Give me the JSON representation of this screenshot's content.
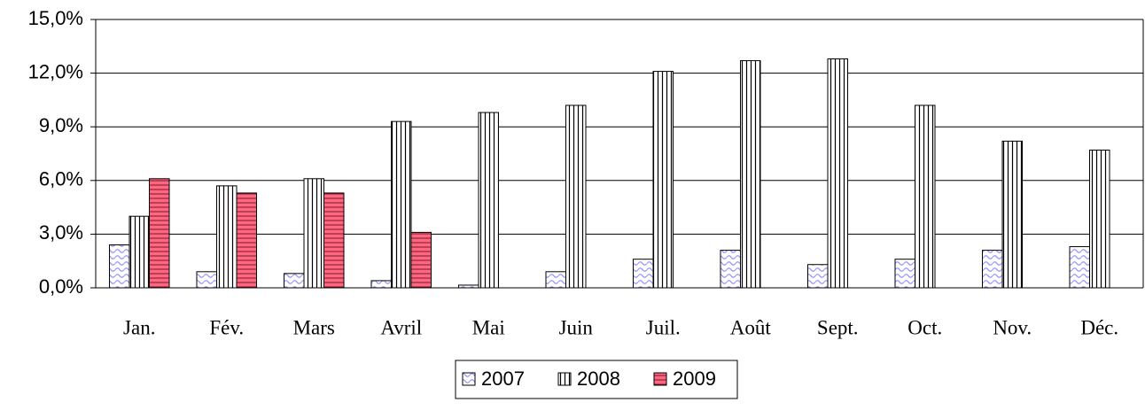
{
  "chart_data": {
    "type": "bar",
    "categories": [
      "Jan.",
      "Fév.",
      "Mars",
      "Avril",
      "Mai",
      "Juin",
      "Juil.",
      "Août",
      "Sept.",
      "Oct.",
      "Nov.",
      "Déc."
    ],
    "series": [
      {
        "name": "2007",
        "color": "#9999ff",
        "pattern": "wave",
        "values": [
          2.4,
          0.9,
          0.8,
          0.4,
          0.15,
          0.9,
          1.6,
          2.1,
          1.3,
          1.6,
          2.1,
          2.3
        ]
      },
      {
        "name": "2008",
        "color": "#000000",
        "pattern": "vertical",
        "values": [
          4.0,
          5.7,
          6.1,
          9.3,
          9.8,
          10.2,
          12.1,
          12.7,
          12.8,
          10.2,
          8.2,
          7.7
        ]
      },
      {
        "name": "2009",
        "color": "#ff6680",
        "pattern": "horizontal",
        "values": [
          6.1,
          5.3,
          5.3,
          3.1,
          null,
          null,
          null,
          null,
          null,
          null,
          null,
          null
        ]
      }
    ],
    "ylim": [
      0,
      15
    ],
    "yticks": [
      {
        "value": 0,
        "label": "0,0%"
      },
      {
        "value": 3,
        "label": "3,0%"
      },
      {
        "value": 6,
        "label": "6,0%"
      },
      {
        "value": 9,
        "label": "9,0%"
      },
      {
        "value": 12,
        "label": "12,0%"
      },
      {
        "value": 15,
        "label": "15,0%"
      }
    ],
    "grid": true,
    "legend": "bottom"
  }
}
